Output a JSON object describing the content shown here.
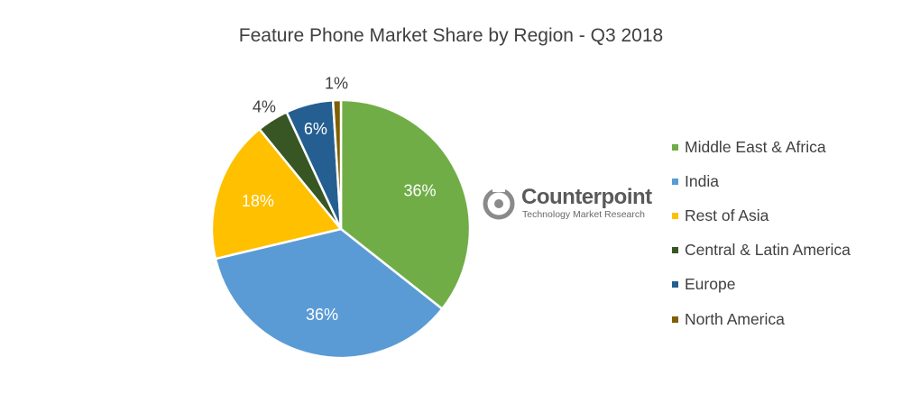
{
  "chart_data": {
    "type": "pie",
    "title": "Feature Phone Market Share by Region - Q3 2018",
    "slices": [
      {
        "label": "Middle East & Africa",
        "value": 36,
        "display": "36%",
        "color": "#70ad47",
        "label_color": "#ffffff"
      },
      {
        "label": "India",
        "value": 36,
        "display": "36%",
        "color": "#5b9bd5",
        "label_color": "#ffffff"
      },
      {
        "label": "Rest of Asia",
        "value": 18,
        "display": "18%",
        "color": "#ffc000",
        "label_color": "#ffffff"
      },
      {
        "label": "Central & Latin America",
        "value": 4,
        "display": "4%",
        "color": "#375623",
        "label_color": "#404040"
      },
      {
        "label": "Europe",
        "value": 6,
        "display": "6%",
        "color": "#255e91",
        "label_color": "#ffffff"
      },
      {
        "label": "North America",
        "value": 1,
        "display": "1%",
        "color": "#7f6000",
        "label_color": "#404040"
      }
    ],
    "legend_position": "right"
  },
  "logo": {
    "name": "Counterpoint",
    "tagline": "Technology Market Research"
  }
}
